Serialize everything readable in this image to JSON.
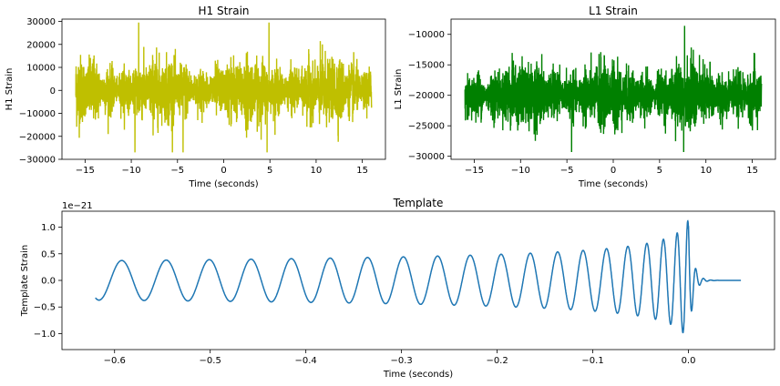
{
  "chart_data": [
    {
      "type": "line",
      "title": "H1 Strain",
      "xlabel": "Time (seconds)",
      "ylabel": "H1 Strain",
      "xlim": [
        -17.5,
        17.5
      ],
      "ylim": [
        -30000,
        31000
      ],
      "xticks": [
        -15,
        -10,
        -5,
        0,
        5,
        10,
        15
      ],
      "xtick_labels": [
        "−15",
        "−10",
        "−5",
        "0",
        "5",
        "10",
        "15"
      ],
      "yticks": [
        -30000,
        -20000,
        -10000,
        0,
        10000,
        20000,
        30000
      ],
      "ytick_labels": [
        "−30000",
        "−20000",
        "−10000",
        "0",
        "10000",
        "20000",
        "30000"
      ],
      "color": "#bfbf00",
      "noise": {
        "x_range": [
          -16,
          16
        ],
        "center": 0,
        "typical_range": [
          -13000,
          13000
        ],
        "peak_range": [
          -27000,
          29500
        ]
      },
      "series": [
        {
          "name": "H1 Strain",
          "note": "dense noise signal"
        }
      ]
    },
    {
      "type": "line",
      "title": "L1 Strain",
      "xlabel": "Time (seconds)",
      "ylabel": "L1 Strain",
      "xlim": [
        -17.5,
        17.5
      ],
      "ylim": [
        -30500,
        -7500
      ],
      "xticks": [
        -15,
        -10,
        -5,
        0,
        5,
        10,
        15
      ],
      "xtick_labels": [
        "−15",
        "−10",
        "−5",
        "0",
        "5",
        "10",
        "15"
      ],
      "yticks": [
        -30000,
        -25000,
        -20000,
        -15000,
        -10000
      ],
      "ytick_labels": [
        "−30000",
        "−25000",
        "−20000",
        "−15000",
        "−10000"
      ],
      "color": "#008000",
      "noise": {
        "x_range": [
          -16,
          16
        ],
        "center": -20000,
        "typical_range": [
          -25000,
          -15000
        ],
        "peak_range": [
          -29300,
          -8600
        ]
      },
      "series": [
        {
          "name": "L1 Strain",
          "note": "dense noise signal"
        }
      ]
    },
    {
      "type": "line",
      "title": "Template",
      "xlabel": "Time (seconds)",
      "ylabel": "Template Strain",
      "offset_label": "1e−21",
      "xlim": [
        -0.655,
        0.09
      ],
      "ylim": [
        -1.3,
        1.3
      ],
      "xticks": [
        -0.6,
        -0.5,
        -0.4,
        -0.3,
        -0.2,
        -0.1,
        0.0
      ],
      "xtick_labels": [
        "−0.6",
        "−0.5",
        "−0.4",
        "−0.3",
        "−0.2",
        "−0.1",
        "0.0"
      ],
      "yticks": [
        -1.0,
        -0.5,
        0.0,
        0.5,
        1.0
      ],
      "ytick_labels": [
        "−1.0",
        "−0.5",
        "0.0",
        "0.5",
        "1.0"
      ],
      "color": "#1f77b4",
      "chirp": {
        "t_start": -0.62,
        "t_merge": 0.0,
        "t_end": 0.055,
        "start_amplitude": 0.37,
        "peak_amplitude": 1.22,
        "start_period": 0.048
      },
      "series": [
        {
          "name": "Template",
          "note": "gravitational-wave chirp"
        }
      ]
    }
  ]
}
